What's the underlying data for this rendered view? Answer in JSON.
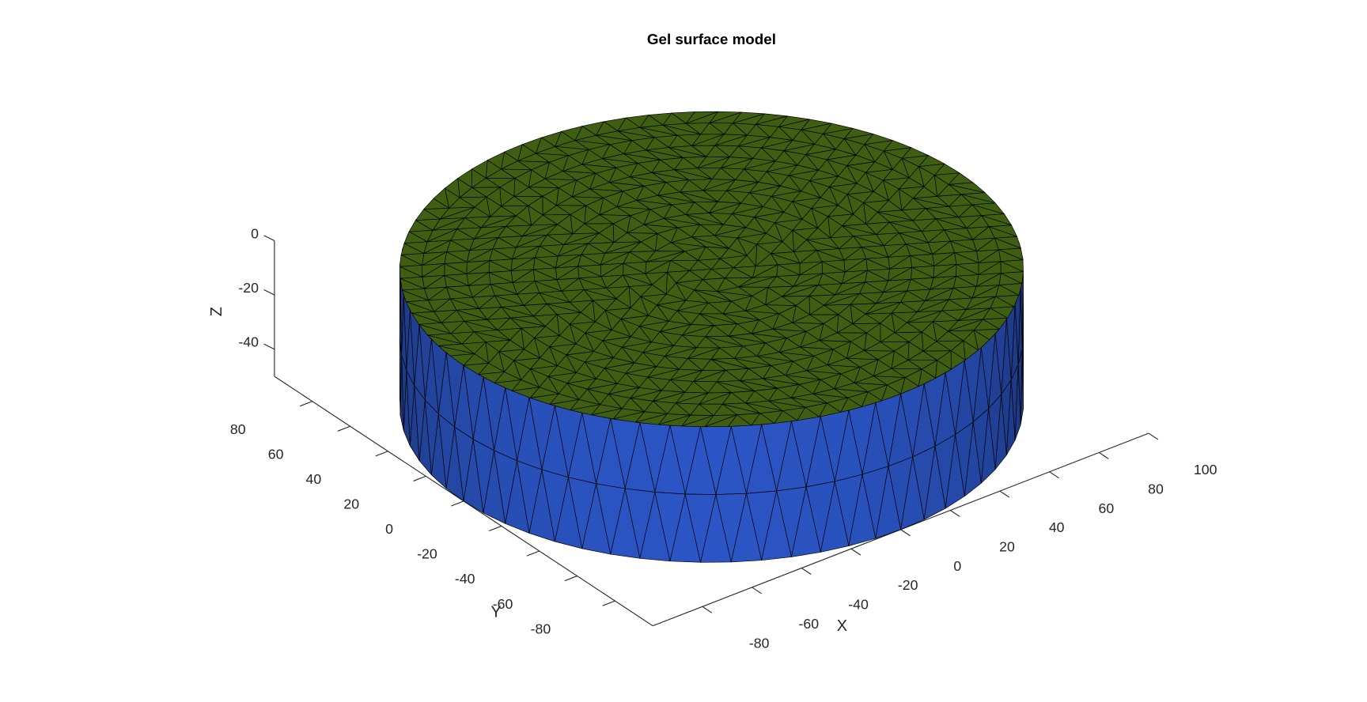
{
  "chart_data": {
    "type": "cylinder3d",
    "title": "Gel surface model",
    "xlabel": "X",
    "ylabel": "Y",
    "zlabel": "Z",
    "xlim": [
      -100,
      100
    ],
    "ylim": [
      -100,
      100
    ],
    "zlim": [
      -50,
      0
    ],
    "xticks": [
      -80,
      -60,
      -40,
      -20,
      0,
      20,
      40,
      60,
      80,
      100
    ],
    "yticks": [
      -80,
      -60,
      -40,
      -20,
      0,
      20,
      40,
      60,
      80
    ],
    "zticks": [
      -40,
      -20,
      0
    ],
    "surface": {
      "radius": 100,
      "z": [
        -50,
        0
      ],
      "top_color": "#3f5e12",
      "side_color": "#2b55c4"
    }
  }
}
